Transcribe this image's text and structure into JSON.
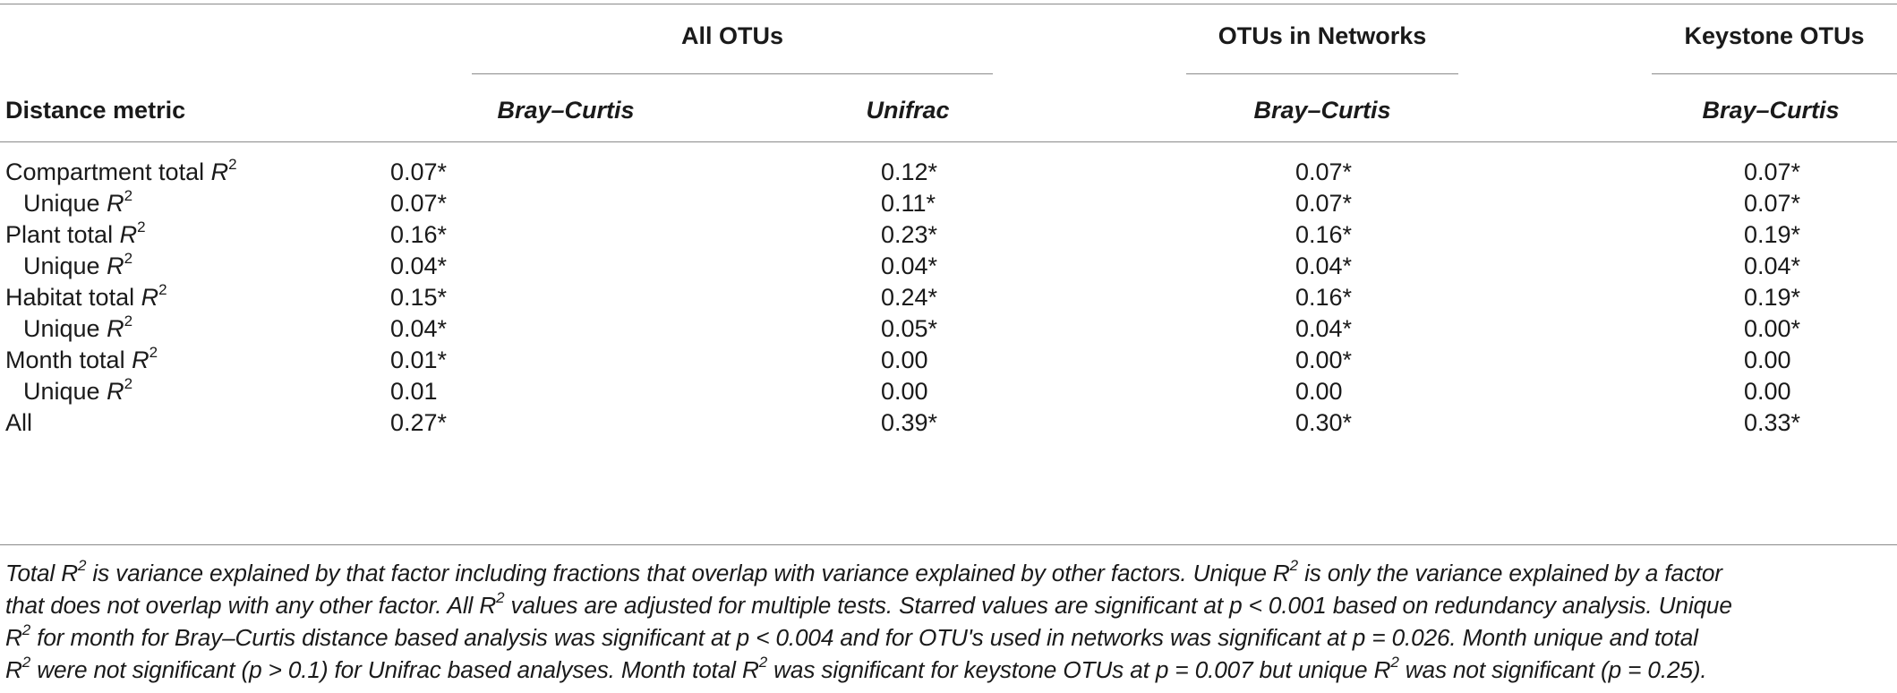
{
  "table": {
    "group_headers": [
      "All OTUs",
      "OTUs in Networks",
      "Keystone OTUs"
    ],
    "row_header_label": "Distance metric",
    "column_headers": [
      "Bray–Curtis",
      "Unifrac",
      "Bray–Curtis",
      "Bray–Curtis"
    ],
    "rows": [
      {
        "label": "Compartment total ",
        "label_var": "R",
        "label_sup": "2",
        "indent": false,
        "values": [
          "0.07*",
          "0.12*",
          "0.07*",
          "0.07*"
        ]
      },
      {
        "label": "Unique ",
        "label_var": "R",
        "label_sup": "2",
        "indent": true,
        "values": [
          "0.07*",
          "0.11*",
          "0.07*",
          "0.07*"
        ]
      },
      {
        "label": "Plant total ",
        "label_var": "R",
        "label_sup": "2",
        "indent": false,
        "values": [
          "0.16*",
          "0.23*",
          "0.16*",
          "0.19*"
        ]
      },
      {
        "label": "Unique ",
        "label_var": "R",
        "label_sup": "2",
        "indent": true,
        "values": [
          "0.04*",
          "0.04*",
          "0.04*",
          "0.04*"
        ]
      },
      {
        "label": "Habitat total ",
        "label_var": "R",
        "label_sup": "2",
        "indent": false,
        "values": [
          "0.15*",
          "0.24*",
          "0.16*",
          "0.19*"
        ]
      },
      {
        "label": "Unique ",
        "label_var": "R",
        "label_sup": "2",
        "indent": true,
        "values": [
          "0.04*",
          "0.05*",
          "0.04*",
          "0.00*"
        ]
      },
      {
        "label": "Month total ",
        "label_var": "R",
        "label_sup": "2",
        "indent": false,
        "values": [
          "0.01*",
          "0.00",
          "0.00*",
          "0.00"
        ]
      },
      {
        "label": "Unique ",
        "label_var": "R",
        "label_sup": "2",
        "indent": true,
        "values": [
          "0.01",
          "0.00",
          "0.00",
          "0.00"
        ]
      },
      {
        "label": "All",
        "label_var": "",
        "label_sup": "",
        "indent": false,
        "values": [
          "0.27*",
          "0.39*",
          "0.30*",
          "0.33*"
        ]
      }
    ]
  },
  "footnote": {
    "lines": [
      [
        {
          "t": "Total "
        },
        {
          "t": "R",
          "sup": "2"
        },
        {
          "t": " is variance explained by that factor including fractions that overlap with variance explained by other factors. Unique "
        },
        {
          "t": "R",
          "sup": "2"
        },
        {
          "t": " is only the variance explained by a factor"
        }
      ],
      [
        {
          "t": "that does not overlap with any other factor. All "
        },
        {
          "t": "R",
          "sup": "2"
        },
        {
          "t": " values are adjusted for multiple tests. Starred values are significant at "
        },
        {
          "t": "p < 0.001 based on redundancy analysis. Unique"
        }
      ],
      [
        {
          "t": "R",
          "sup": "2"
        },
        {
          "t": " for month for Bray–Curtis distance based analysis was significant at "
        },
        {
          "t": "p < 0.004 and for OTU's used in networks was significant at p = 0.026. Month unique and total"
        }
      ],
      [
        {
          "t": "R",
          "sup": "2"
        },
        {
          "t": " were not significant ("
        },
        {
          "t": "p > 0.1) for Unifrac based analyses. Month total "
        },
        {
          "t": "R",
          "sup": "2"
        },
        {
          "t": " was significant for keystone OTUs at "
        },
        {
          "t": "p = 0.007 but unique "
        },
        {
          "t": "R",
          "sup": "2"
        },
        {
          "t": " was not significant ("
        },
        {
          "t": "p = 0.25)."
        }
      ]
    ]
  }
}
